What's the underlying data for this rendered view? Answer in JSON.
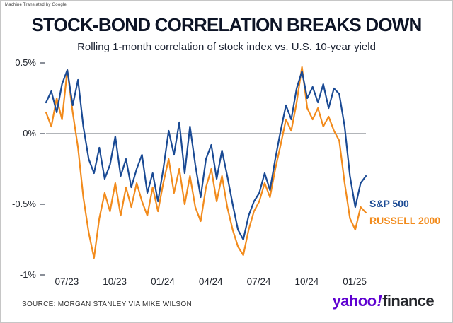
{
  "meta": {
    "watermark": "Machine Translated by Google"
  },
  "header": {
    "title": "STOCK-BOND CORRELATION BREAKS DOWN",
    "subtitle": "Rolling 1-month correlation of stock index vs. U.S. 10-year yield"
  },
  "footer": {
    "source": "SOURCE: MORGAN STANLEY VIA MIKE WILSON",
    "logo": {
      "yahoo": "yahoo",
      "bang": "!",
      "finance": "finance",
      "purple": "#5f01d1",
      "black": "#24262b"
    }
  },
  "chart_data": {
    "type": "line",
    "title": "STOCK-BOND CORRELATION BREAKS DOWN",
    "subtitle": "Rolling 1-month correlation of stock index vs. U.S. 10-year yield",
    "xlabel": "",
    "ylabel": "",
    "grid": false,
    "zero_line": true,
    "legend_position": "right",
    "xlim": [
      0,
      20
    ],
    "ylim": [
      -1.04,
      0.54
    ],
    "x_ticks": [
      {
        "pos": 1.3,
        "label": "07/23"
      },
      {
        "pos": 4.3,
        "label": "10/23"
      },
      {
        "pos": 7.3,
        "label": "01/24"
      },
      {
        "pos": 10.3,
        "label": "04/24"
      },
      {
        "pos": 13.3,
        "label": "07/24"
      },
      {
        "pos": 16.3,
        "label": "10/24"
      },
      {
        "pos": 19.3,
        "label": "01/25"
      }
    ],
    "y_ticks": [
      {
        "value": 0.5,
        "label": "0.5%"
      },
      {
        "value": 0,
        "label": "0%"
      },
      {
        "value": -0.5,
        "label": "-0.5%"
      },
      {
        "value": -1,
        "label": "-1%"
      }
    ],
    "series": [
      {
        "name": "S&P 500",
        "color": "#1a4a94",
        "values": [
          0.22,
          0.3,
          0.15,
          0.35,
          0.45,
          0.2,
          0.38,
          0.05,
          -0.18,
          -0.28,
          -0.1,
          -0.32,
          -0.22,
          -0.02,
          -0.3,
          -0.18,
          -0.38,
          -0.25,
          -0.15,
          -0.42,
          -0.28,
          -0.48,
          -0.25,
          0.02,
          -0.15,
          0.08,
          -0.28,
          0.05,
          -0.22,
          -0.45,
          -0.18,
          -0.08,
          -0.32,
          -0.12,
          -0.3,
          -0.5,
          -0.68,
          -0.75,
          -0.58,
          -0.48,
          -0.42,
          -0.28,
          -0.4,
          -0.18,
          0.02,
          0.2,
          0.1,
          0.32,
          0.44,
          0.25,
          0.33,
          0.22,
          0.35,
          0.18,
          0.32,
          0.28,
          0.05,
          -0.3,
          -0.52,
          -0.35,
          -0.3
        ]
      },
      {
        "name": "RUSSELL 2000",
        "color": "#f28b1c",
        "values": [
          0.15,
          0.05,
          0.25,
          0.1,
          0.45,
          0.15,
          -0.1,
          -0.45,
          -0.7,
          -0.88,
          -0.6,
          -0.42,
          -0.55,
          -0.35,
          -0.58,
          -0.38,
          -0.52,
          -0.35,
          -0.48,
          -0.58,
          -0.38,
          -0.55,
          -0.35,
          -0.18,
          -0.42,
          -0.25,
          -0.5,
          -0.3,
          -0.52,
          -0.62,
          -0.38,
          -0.25,
          -0.48,
          -0.3,
          -0.52,
          -0.68,
          -0.8,
          -0.86,
          -0.68,
          -0.55,
          -0.48,
          -0.35,
          -0.45,
          -0.25,
          -0.08,
          0.1,
          0.02,
          0.22,
          0.47,
          0.18,
          0.1,
          0.18,
          0.05,
          0.12,
          0.02,
          -0.05,
          -0.35,
          -0.6,
          -0.68,
          -0.52,
          -0.56
        ]
      }
    ]
  }
}
